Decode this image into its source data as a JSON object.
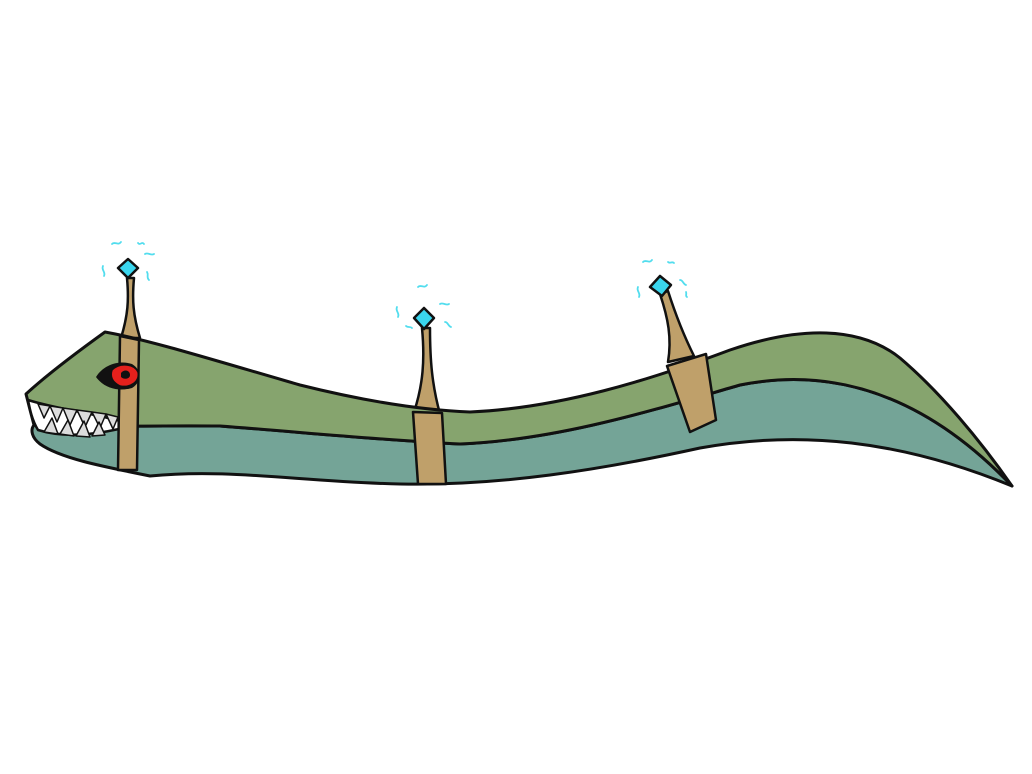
{
  "illustration": {
    "subject": "sea-serpent-eel",
    "colors": {
      "background": "#ffffff",
      "back_green": "#86a46e",
      "belly_teal": "#74a497",
      "band_tan": "#bfa06a",
      "outline": "#111111",
      "eye_red": "#e5201c",
      "eye_black": "#111111",
      "teeth": "#dcdcdc",
      "crystal_cyan": "#3ad6ee",
      "sparkle_cyan": "#52ddee"
    },
    "parts": {
      "bands": 3,
      "antennae": 3,
      "crystals": 3,
      "eyes": 1
    }
  }
}
